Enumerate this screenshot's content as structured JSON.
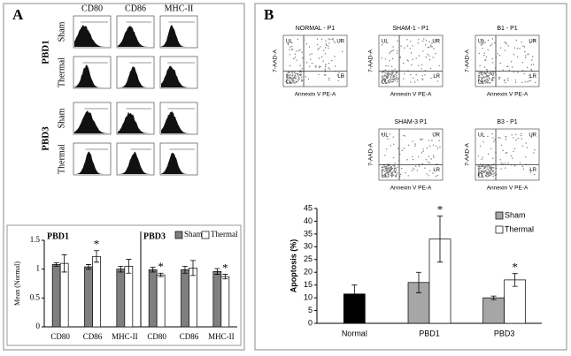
{
  "panel_a": {
    "label": "A",
    "column_headers": [
      "CD80",
      "CD86",
      "MHC-II"
    ],
    "groups": [
      {
        "name": "PBD1",
        "rows": [
          "Sham",
          "Thermal"
        ]
      },
      {
        "name": "PBD3",
        "rows": [
          "Sham",
          "Thermal"
        ]
      }
    ]
  },
  "panel_b": {
    "label": "B",
    "plots": [
      "NORMAL - P1",
      "SHAM-1 - P1",
      "B1 - P1",
      "SHAM-3 P1",
      "B3 - P1"
    ],
    "quadrants": [
      "UL",
      "UR",
      "LL",
      "LR"
    ],
    "x_label": "Annexin V PE-A",
    "y_label": "7-AAD-A"
  },
  "chart_data": [
    {
      "type": "bar",
      "y_label": "Mean (Normal)",
      "groups": [
        {
          "name": "PBD1",
          "categories": [
            "CD80",
            "CD86",
            "MHC-II"
          ]
        },
        {
          "name": "PBD3",
          "categories": [
            "CD80",
            "CD86",
            "MHC-II"
          ]
        }
      ],
      "ylim": [
        0,
        1.5
      ],
      "yticks": [
        0,
        0.5,
        1,
        1.5
      ],
      "series": [
        {
          "name": "Sham",
          "color": "#7f7f7f",
          "values": [
            1.08,
            1.04,
            1.0,
            0.99,
            0.99,
            0.96
          ],
          "errors": [
            0.03,
            0.04,
            0.05,
            0.04,
            0.06,
            0.05
          ],
          "marks": [
            null,
            null,
            null,
            null,
            null,
            null
          ]
        },
        {
          "name": "Thermal",
          "color": "#ffffff",
          "values": [
            1.1,
            1.22,
            1.05,
            0.9,
            1.02,
            0.87
          ],
          "errors": [
            0.15,
            0.1,
            0.12,
            0.03,
            0.13,
            0.04
          ],
          "marks": [
            null,
            "*",
            null,
            "*",
            null,
            "*"
          ]
        }
      ]
    },
    {
      "type": "bar",
      "y_label": "Apoptosis (%)",
      "categories": [
        "Normal",
        "PBD1",
        "PBD3"
      ],
      "ylim": [
        0,
        45
      ],
      "yticks": [
        0,
        5,
        10,
        15,
        20,
        25,
        30,
        35,
        40,
        45
      ],
      "series": [
        {
          "name": "Sham",
          "color": "#a6a6a6",
          "point_colors": [
            "#000000",
            "#a6a6a6",
            "#a6a6a6"
          ],
          "values": [
            11.5,
            16,
            10
          ],
          "errors": [
            3.5,
            4,
            0.7
          ],
          "marks": [
            null,
            null,
            null
          ]
        },
        {
          "name": "Thermal",
          "color": "#ffffff",
          "values": [
            null,
            33,
            17
          ],
          "errors": [
            null,
            9,
            2.5
          ],
          "marks": [
            null,
            "*",
            "*"
          ]
        }
      ]
    }
  ]
}
